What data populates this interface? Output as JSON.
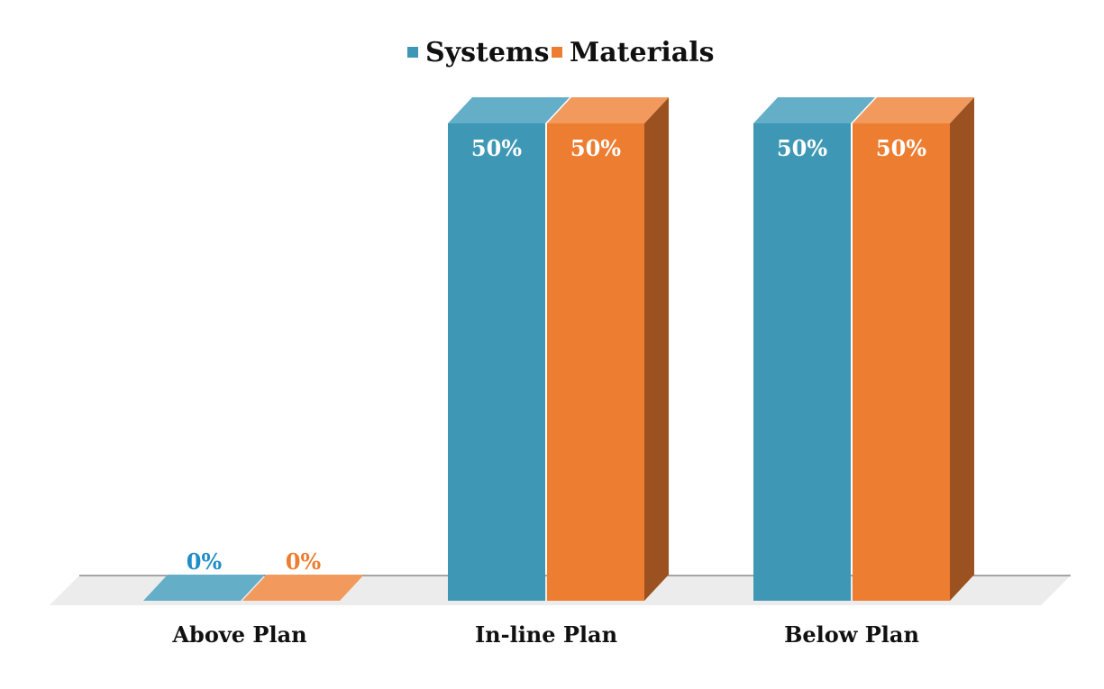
{
  "chart_data": {
    "type": "bar",
    "categories": [
      "Above Plan",
      "In-line Plan",
      "Below Plan"
    ],
    "series": [
      {
        "name": "Systems",
        "values": [
          0,
          50,
          50
        ],
        "labels": [
          "0%",
          "50%",
          "50%"
        ]
      },
      {
        "name": "Materials",
        "values": [
          0,
          50,
          50
        ],
        "labels": [
          "0%",
          "50%",
          "50%"
        ]
      }
    ],
    "ylim": [
      0,
      50
    ],
    "legend_position": "top-center",
    "grid": false,
    "style": "3d-column",
    "colors": {
      "systems_front": "#3e98b5",
      "systems_top": "#65aec7",
      "materials_front": "#ed7d31",
      "materials_top": "#f29a5d",
      "materials_side": "#9c5220",
      "systems_zero_label": "#1e8dc8",
      "materials_zero_label": "#ed7d31",
      "floor": "#ececec",
      "axis_line": "#555555"
    }
  }
}
